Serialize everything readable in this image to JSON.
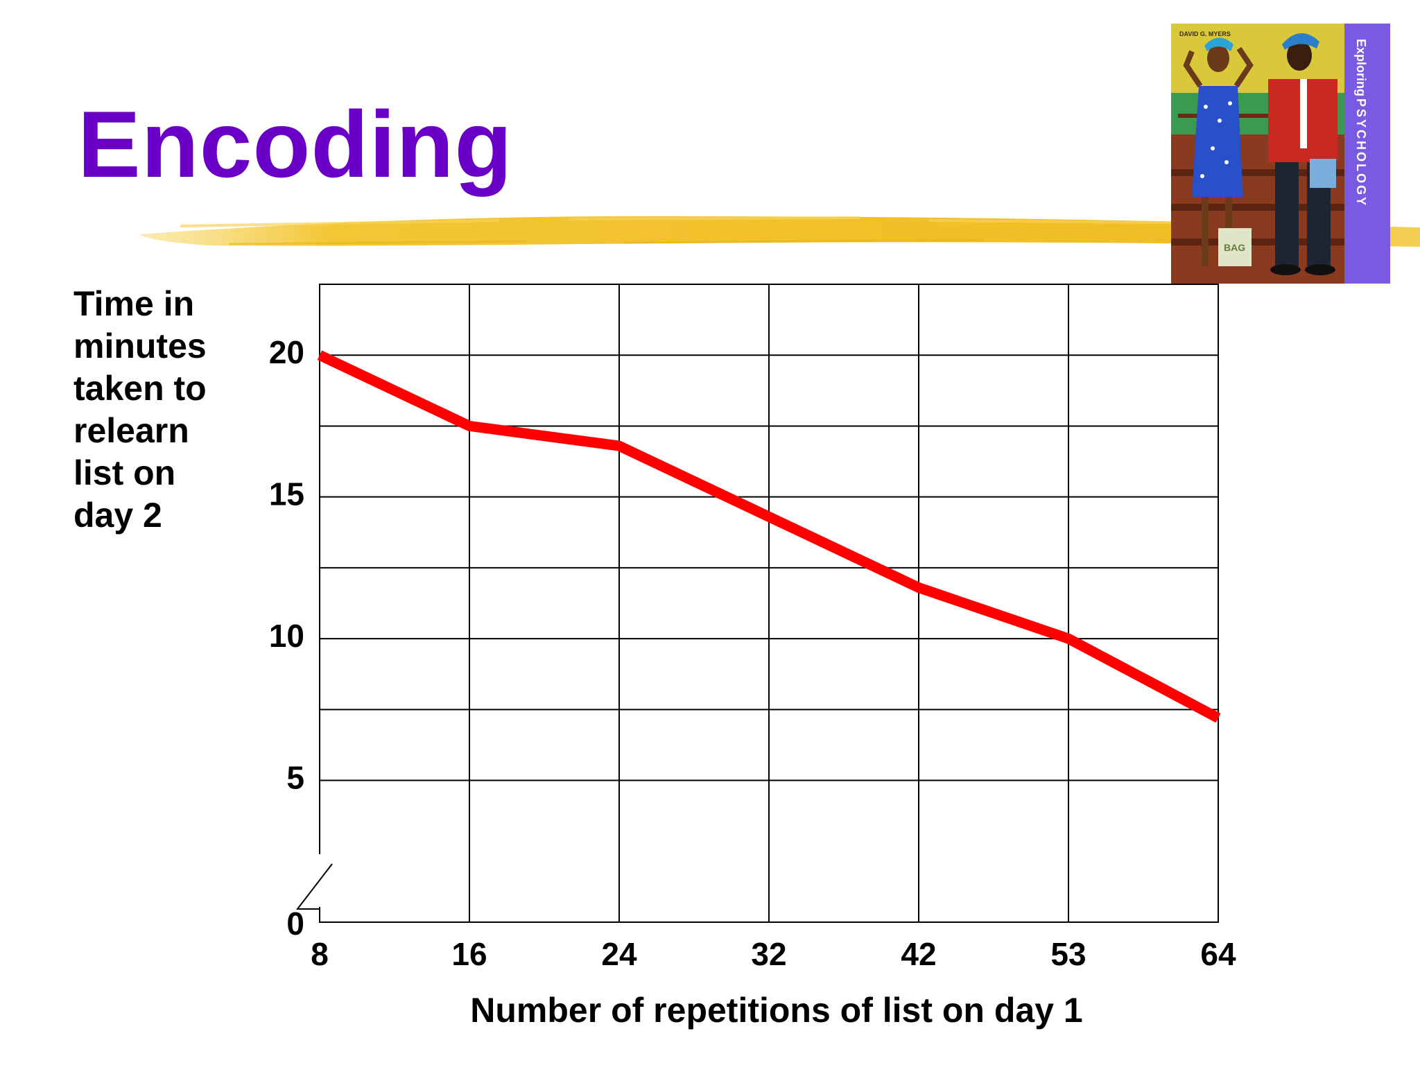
{
  "slide": {
    "title": "Encoding",
    "title_color": "#6a00c8",
    "highlight_color": "#f2c32a"
  },
  "book_cover": {
    "author": "DAVID G. MYERS",
    "title_word1": "Exploring",
    "title_word2": "PSYCHOLOGY",
    "bag_label": "BAG",
    "spine_color": "#7a5ae0"
  },
  "chart_data": {
    "type": "line",
    "title": "",
    "xlabel": "Number of repetitions of list on day 1",
    "ylabel": "Time in\nminutes\ntaken to\nrelearn\nlist on\nday 2",
    "x_ticks": [
      "8",
      "16",
      "24",
      "32",
      "42",
      "53",
      "64"
    ],
    "y_ticks": [
      {
        "label": "0",
        "value": 0
      },
      {
        "label": "5",
        "value": 5
      },
      {
        "label": "10",
        "value": 10
      },
      {
        "label": "15",
        "value": 15
      },
      {
        "label": "20",
        "value": 20
      }
    ],
    "ylim": [
      0,
      22.5
    ],
    "y_axis_break": true,
    "grid": true,
    "series": [
      {
        "color": "#ff0000",
        "points": [
          {
            "x": 8,
            "y": 20.0
          },
          {
            "x": 16,
            "y": 17.5
          },
          {
            "x": 24,
            "y": 16.8
          },
          {
            "x": 32,
            "y": 14.3
          },
          {
            "x": 42,
            "y": 11.8
          },
          {
            "x": 53,
            "y": 10.0
          },
          {
            "x": 64,
            "y": 7.2
          }
        ]
      }
    ]
  }
}
